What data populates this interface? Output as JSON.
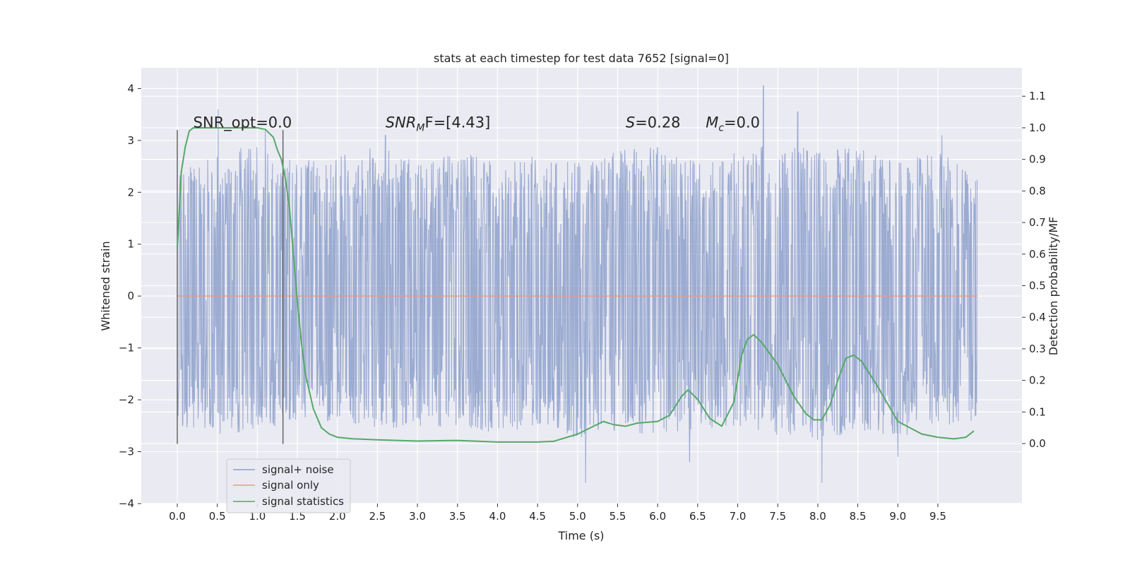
{
  "chart_data": {
    "type": "line",
    "title": "stats at each timestep for test data 7652 [signal=0]",
    "xlabel": "Time (s)",
    "ylabel_left": "Whitened strain",
    "ylabel_right": "Detection probability/MF",
    "xlim": [
      -0.45,
      10.55
    ],
    "ylim_left": [
      -4,
      4.4
    ],
    "ylim_right": [
      -0.19,
      1.19
    ],
    "x_ticks": [
      0.0,
      0.5,
      1.0,
      1.5,
      2.0,
      2.5,
      3.0,
      3.5,
      4.0,
      4.5,
      5.0,
      5.5,
      6.0,
      6.5,
      7.0,
      7.5,
      8.0,
      8.5,
      9.0,
      9.5
    ],
    "x_tick_labels": [
      "0.0",
      "0.5",
      "1.0",
      "1.5",
      "2.0",
      "2.5",
      "3.0",
      "3.5",
      "4.0",
      "4.5",
      "5.0",
      "5.5",
      "6.0",
      "6.5",
      "7.0",
      "7.5",
      "8.0",
      "8.5",
      "9.0",
      "9.5"
    ],
    "y_left_ticks": [
      4,
      3,
      2,
      1,
      0,
      -1,
      -2,
      -3,
      -4
    ],
    "y_left_tick_labels": [
      "4",
      "3",
      "2",
      "1",
      "0",
      "−1",
      "−2",
      "−3",
      "−4"
    ],
    "y_right_ticks": [
      1.1,
      1.0,
      0.9,
      0.8,
      0.7,
      0.6,
      0.5,
      0.4,
      0.3,
      0.2,
      0.1,
      0.0
    ],
    "y_right_tick_labels": [
      "1.1",
      "1.0",
      "0.9",
      "0.8",
      "0.7",
      "0.6",
      "0.5",
      "0.4",
      "0.3",
      "0.2",
      "0.1",
      "0.0"
    ],
    "grid": true,
    "legend_position": "lower-left",
    "series": [
      {
        "name": "signal+ noise",
        "axis": "left",
        "color": "#8da0cb",
        "x_range": [
          0.0,
          9.99
        ],
        "envelope": {
          "x": [
            0.0,
            0.5,
            1.0,
            1.5,
            2.0,
            2.5,
            3.0,
            3.5,
            4.0,
            4.5,
            5.0,
            5.5,
            6.0,
            6.5,
            7.0,
            7.5,
            8.0,
            8.5,
            9.0,
            9.5,
            9.99
          ],
          "upper": [
            2.5,
            2.8,
            2.9,
            2.6,
            2.7,
            2.9,
            2.6,
            2.8,
            2.6,
            2.7,
            2.6,
            2.8,
            2.9,
            2.6,
            2.8,
            3.0,
            2.8,
            2.9,
            2.6,
            2.8,
            2.4
          ],
          "lower": [
            -2.5,
            -2.7,
            -2.6,
            -2.4,
            -2.5,
            -2.6,
            -2.5,
            -2.6,
            -2.7,
            -2.5,
            -2.8,
            -2.6,
            -2.7,
            -2.6,
            -2.5,
            -2.7,
            -2.8,
            -2.6,
            -2.7,
            -2.6,
            -2.4
          ]
        },
        "peaks": [
          [
            0.51,
            3.6
          ],
          [
            1.1,
            3.2
          ],
          [
            2.6,
            3.1
          ],
          [
            5.1,
            -3.6
          ],
          [
            6.4,
            -3.2
          ],
          [
            7.32,
            4.05
          ],
          [
            7.75,
            3.55
          ],
          [
            8.05,
            -3.6
          ],
          [
            9.0,
            -3.1
          ],
          [
            9.55,
            3.1
          ]
        ]
      },
      {
        "name": "signal only",
        "axis": "left",
        "color": "#e49c84",
        "x": [
          0.0,
          9.99
        ],
        "y": [
          0.0,
          0.0
        ]
      },
      {
        "name": "signal statistics",
        "axis": "right",
        "color": "#55a868",
        "x": [
          0.0,
          0.05,
          0.1,
          0.15,
          0.2,
          0.3,
          0.5,
          0.8,
          1.0,
          1.1,
          1.2,
          1.25,
          1.3,
          1.35,
          1.4,
          1.45,
          1.5,
          1.55,
          1.6,
          1.7,
          1.8,
          1.9,
          2.0,
          2.2,
          2.5,
          3.0,
          3.5,
          4.0,
          4.5,
          4.7,
          5.0,
          5.2,
          5.32,
          5.45,
          5.6,
          5.75,
          6.0,
          6.15,
          6.3,
          6.38,
          6.5,
          6.65,
          6.8,
          6.95,
          7.05,
          7.12,
          7.2,
          7.3,
          7.5,
          7.7,
          7.85,
          7.95,
          8.05,
          8.15,
          8.25,
          8.35,
          8.45,
          8.55,
          8.75,
          9.0,
          9.3,
          9.5,
          9.7,
          9.85,
          9.95
        ],
        "y": [
          0.62,
          0.86,
          0.94,
          0.99,
          1.0,
          1.0,
          1.0,
          1.0,
          1.0,
          0.995,
          0.97,
          0.93,
          0.9,
          0.84,
          0.75,
          0.6,
          0.45,
          0.32,
          0.22,
          0.11,
          0.05,
          0.03,
          0.02,
          0.015,
          0.012,
          0.008,
          0.01,
          0.005,
          0.005,
          0.007,
          0.03,
          0.055,
          0.07,
          0.06,
          0.055,
          0.065,
          0.07,
          0.09,
          0.15,
          0.17,
          0.14,
          0.08,
          0.055,
          0.13,
          0.28,
          0.33,
          0.345,
          0.32,
          0.25,
          0.15,
          0.095,
          0.075,
          0.075,
          0.12,
          0.2,
          0.27,
          0.28,
          0.26,
          0.18,
          0.07,
          0.03,
          0.02,
          0.015,
          0.02,
          0.04
        ]
      }
    ],
    "vertical_markers": [
      {
        "x": 0.0,
        "y_range": [
          -2.85,
          3.2
        ],
        "color": "#666666"
      },
      {
        "x": 1.32,
        "y_range": [
          -2.85,
          3.2
        ],
        "color": "#666666"
      }
    ],
    "annotations": [
      {
        "text": "SNR_opt=0.0",
        "x": 0.2,
        "y": 3.25
      },
      {
        "text_main": "SNR",
        "text_sub": "M",
        "text_tail": "F=[4.43]",
        "x": 2.6,
        "y": 3.25
      },
      {
        "text_main": "S",
        "text_tail": "=0.28",
        "x": 5.6,
        "y": 3.25
      },
      {
        "text_main": "M",
        "text_sub": "c",
        "text_tail": "=0.0",
        "x": 6.6,
        "y": 3.25
      }
    ]
  }
}
